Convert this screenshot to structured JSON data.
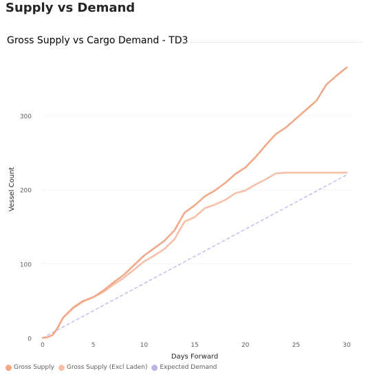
{
  "page": {
    "title": "Supply vs Demand"
  },
  "chart_data": {
    "type": "line",
    "title": "Gross Supply vs Cargo Demand - TD3",
    "xlabel": "Days Forward",
    "ylabel": "Vessel Count",
    "xlim": [
      0,
      30
    ],
    "ylim": [
      0,
      365
    ],
    "xticks": [
      0,
      5,
      10,
      15,
      20,
      25,
      30
    ],
    "yticks": [
      0,
      100,
      200,
      300
    ],
    "grid": "horizontal dotted",
    "legend_position": "bottom-left",
    "series": [
      {
        "name": "Gross Supply",
        "color": "#f0a888",
        "dash": false,
        "x": [
          0,
          0.5,
          1,
          1.5,
          2,
          3,
          4,
          5,
          6,
          7,
          8,
          9,
          10,
          11,
          12,
          13,
          14,
          15,
          16,
          17,
          18,
          19,
          20,
          21,
          22,
          23,
          24,
          25,
          26,
          27,
          28,
          29,
          30
        ],
        "y": [
          0,
          1,
          4,
          14,
          27,
          41,
          50,
          55,
          64,
          75,
          85,
          98,
          111,
          121,
          131,
          145,
          169,
          179,
          191,
          199,
          209,
          221,
          230,
          244,
          260,
          275,
          284,
          296,
          308,
          320,
          342,
          354,
          365
        ]
      },
      {
        "name": "Gross Supply (Excl Laden)",
        "color": "#f6c0a8",
        "dash": false,
        "x": [
          0,
          0.5,
          1,
          1.5,
          2,
          3,
          4,
          5,
          6,
          7,
          8,
          9,
          10,
          11,
          12,
          13,
          14,
          15,
          16,
          17,
          18,
          19,
          20,
          21,
          22,
          23,
          24,
          25,
          26,
          27,
          28,
          29,
          30
        ],
        "y": [
          0,
          1,
          4,
          14,
          27,
          40,
          49,
          55,
          62,
          72,
          81,
          92,
          103,
          111,
          120,
          133,
          157,
          163,
          175,
          180,
          186,
          195,
          199,
          207,
          214,
          222,
          223,
          223,
          223,
          223,
          223,
          223,
          223
        ]
      },
      {
        "name": "Expected Demand",
        "color": "#b6b4e8",
        "dash": true,
        "x": [
          0,
          30
        ],
        "y": [
          0,
          220
        ]
      }
    ]
  }
}
